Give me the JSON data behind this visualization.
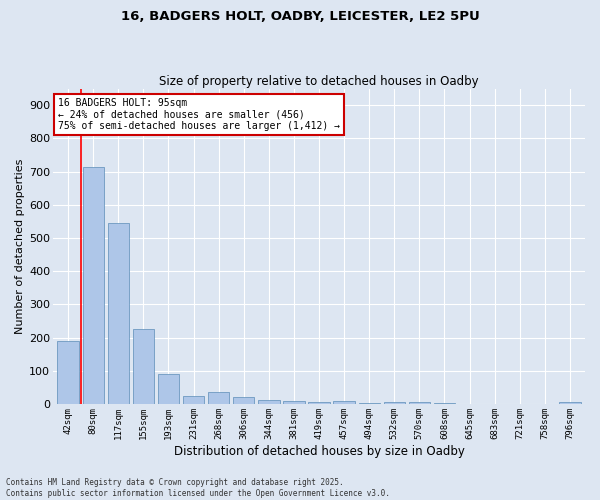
{
  "title_line1": "16, BADGERS HOLT, OADBY, LEICESTER, LE2 5PU",
  "title_line2": "Size of property relative to detached houses in Oadby",
  "xlabel": "Distribution of detached houses by size in Oadby",
  "ylabel": "Number of detached properties",
  "categories": [
    "42sqm",
    "80sqm",
    "117sqm",
    "155sqm",
    "193sqm",
    "231sqm",
    "268sqm",
    "306sqm",
    "344sqm",
    "381sqm",
    "419sqm",
    "457sqm",
    "494sqm",
    "532sqm",
    "570sqm",
    "608sqm",
    "645sqm",
    "683sqm",
    "721sqm",
    "758sqm",
    "796sqm"
  ],
  "values": [
    190,
    715,
    545,
    225,
    90,
    25,
    35,
    22,
    12,
    8,
    5,
    10,
    4,
    6,
    6,
    3,
    0,
    0,
    0,
    0,
    5
  ],
  "bar_color": "#aec6e8",
  "bar_edge_color": "#5b8db8",
  "background_color": "#dde6f2",
  "grid_color": "#ffffff",
  "red_line_x": 0.5,
  "annotation_text_line1": "16 BADGERS HOLT: 95sqm",
  "annotation_text_line2": "← 24% of detached houses are smaller (456)",
  "annotation_text_line3": "75% of semi-detached houses are larger (1,412) →",
  "annotation_box_color": "#ffffff",
  "annotation_box_edge": "#cc0000",
  "ylim": [
    0,
    950
  ],
  "yticks": [
    0,
    100,
    200,
    300,
    400,
    500,
    600,
    700,
    800,
    900
  ],
  "footer_line1": "Contains HM Land Registry data © Crown copyright and database right 2025.",
  "footer_line2": "Contains public sector information licensed under the Open Government Licence v3.0."
}
